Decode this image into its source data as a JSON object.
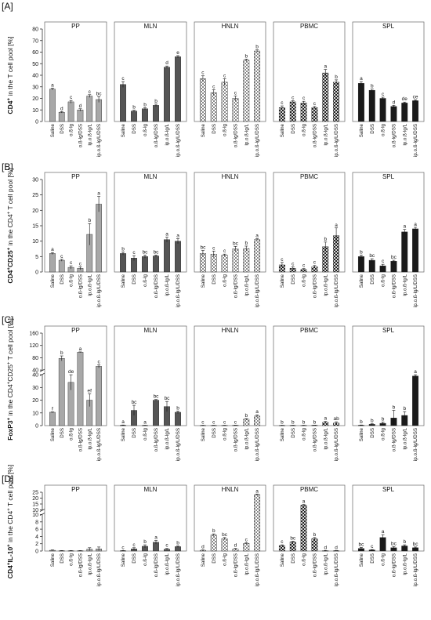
{
  "figure": {
    "groups": [
      "Saline",
      "DSS",
      "o.ß-lg",
      "o.ß-lg/DSS",
      "ip.o.ß-lg/L",
      "ip.o.ß-lg/L/DSS"
    ],
    "colors": {
      "PP": "#a8a8a8",
      "MLN": "#555555",
      "HNLN": "#c8c8c8",
      "PBMC": "#bbbbbb",
      "SPL": "#1a1a1a",
      "axis": "#333333",
      "text": "#111111"
    }
  },
  "chart_data": [
    {
      "type": "bar",
      "panel_tag": "[A]",
      "ylabel_main": "CD4",
      "ylabel_sup": "+",
      "ylabel_rest": " in the T cell pool [%]",
      "ylim": [
        0,
        80
      ],
      "yticks": [
        0,
        10,
        20,
        30,
        40,
        50,
        60,
        70,
        80
      ],
      "categories": [
        "Saline",
        "DSS",
        "o.ß-lg",
        "o.ß-lg/DSS",
        "ip.o.ß-lg/L",
        "ip.o.ß-lg/L/DSS"
      ],
      "tissues": [
        {
          "name": "PP",
          "pattern": "solid-light",
          "values": [
            28,
            8,
            17,
            10,
            22,
            19
          ],
          "errors": [
            0.8,
            0.6,
            1.2,
            1,
            1.2,
            2.5
          ],
          "letters": [
            "a",
            "d",
            "c",
            "d",
            "c",
            "bc"
          ]
        },
        {
          "name": "MLN",
          "pattern": "solid-dark",
          "values": [
            32,
            9,
            11,
            14,
            47,
            56
          ],
          "errors": [
            2.5,
            0.8,
            1,
            1,
            1,
            1
          ],
          "letters": [
            "c",
            "b",
            "b",
            "b",
            "d",
            "e"
          ]
        },
        {
          "name": "HNLN",
          "pattern": "check",
          "values": [
            37,
            25,
            34,
            20,
            53,
            61
          ],
          "errors": [
            2.5,
            2.5,
            3,
            2,
            1,
            1
          ],
          "letters": [
            "c",
            "c",
            "c",
            "c",
            "b",
            "b"
          ]
        },
        {
          "name": "PBMC",
          "pattern": "check-dark",
          "values": [
            12,
            17,
            16,
            12,
            42,
            34
          ],
          "errors": [
            1.5,
            1,
            1.5,
            1,
            3,
            2
          ],
          "letters": [
            "c",
            "c",
            "c",
            "c",
            "a",
            "b"
          ]
        },
        {
          "name": "SPL",
          "pattern": "solid-black",
          "values": [
            33,
            27,
            20,
            13,
            16,
            18
          ],
          "errors": [
            1.5,
            1,
            1,
            1,
            0.8,
            0.8
          ],
          "letters": [
            "a",
            "b",
            "c",
            "d",
            "de",
            "ce"
          ]
        }
      ]
    },
    {
      "type": "bar",
      "panel_tag": "[B]",
      "ylabel_main": "CD4",
      "ylabel_sup": "+",
      "ylabel_main2": "CD25",
      "ylabel_sup2": "+",
      "ylabel_rest": " in the CD4",
      "ylabel_sup3": "+",
      "ylabel_rest2": " T cell pool [%]",
      "ylim": [
        0,
        30
      ],
      "yticks": [
        0,
        5,
        10,
        15,
        20,
        25,
        30
      ],
      "categories": [
        "Saline",
        "DSS",
        "o.ß-lg",
        "o.ß-lg/DSS",
        "ip.o.ß-lg/L",
        "ip.o.ß-lg/L/DSS"
      ],
      "tissues": [
        {
          "name": "PP",
          "pattern": "solid-light",
          "values": [
            6,
            3.8,
            1.5,
            1.2,
            12.2,
            22
          ],
          "errors": [
            0.3,
            0.3,
            0.5,
            0.5,
            3.5,
            2.5
          ],
          "letters": [
            "a",
            "c",
            "c",
            "c",
            "b",
            "a"
          ]
        },
        {
          "name": "MLN",
          "pattern": "solid-dark",
          "values": [
            6,
            4.5,
            5,
            5.2,
            10.5,
            10
          ],
          "errors": [
            0.5,
            0.8,
            0.5,
            0.3,
            0.8,
            0.8
          ],
          "letters": [
            "b",
            "c",
            "bc",
            "bc",
            "a",
            "a"
          ]
        },
        {
          "name": "HNLN",
          "pattern": "check",
          "values": [
            6,
            5.8,
            5.5,
            7.5,
            7.6,
            10.5
          ],
          "errors": [
            1,
            1,
            0.3,
            0.8,
            0.8,
            0.3
          ],
          "letters": [
            "bc",
            "c",
            "c",
            "bc",
            "b",
            "a"
          ]
        },
        {
          "name": "PBMC",
          "pattern": "check-dark",
          "values": [
            2.3,
            1.2,
            0.8,
            1.7,
            8.2,
            11.8
          ],
          "errors": [
            0.8,
            0.5,
            0.3,
            0.4,
            1.5,
            2.5
          ],
          "letters": [
            "c",
            "c",
            "c",
            "c",
            "b",
            "a"
          ]
        },
        {
          "name": "SPL",
          "pattern": "solid-black",
          "values": [
            5,
            3.8,
            2,
            3.5,
            13,
            14
          ],
          "errors": [
            0.5,
            0.5,
            0.5,
            0.3,
            0.8,
            0.5
          ],
          "letters": [
            "b",
            "bc",
            "c",
            "bc",
            "a",
            "a"
          ]
        }
      ]
    },
    {
      "type": "bar",
      "panel_tag": "[C]",
      "ylabel_main": "FoxP3",
      "ylabel_sup": "+",
      "ylabel_rest": " in the CD4",
      "ylabel_sup2": "+",
      "ylabel_main2": "CD25",
      "ylabel_sup3": "+",
      "ylabel_rest2": " T cell pool [%]",
      "broken_axis": {
        "lower": [
          0,
          40
        ],
        "upper": [
          40,
          160
        ]
      },
      "yticks_lower": [
        0,
        10,
        20,
        30,
        40
      ],
      "yticks_upper": [
        40,
        80,
        120,
        160
      ],
      "categories": [
        "Saline",
        "DSS",
        "o.ß-lg",
        "o.ß-lg/DSS",
        "ip.o.ß-lg/L",
        "ip.o.ß-lg/L/DSS"
      ],
      "tissues": [
        {
          "name": "PP",
          "pattern": "solid-light",
          "values": [
            10.5,
            78,
            34,
            98,
            20,
            52
          ],
          "errors": [
            0.3,
            8,
            6,
            1,
            5,
            5
          ],
          "letters": [
            "f",
            "b",
            "de",
            "a",
            "ef",
            "c"
          ]
        },
        {
          "name": "MLN",
          "pattern": "solid-dark",
          "values": [
            0.3,
            12,
            0.2,
            20,
            15,
            10.5
          ],
          "errors": [
            0.2,
            4,
            0.1,
            0.5,
            4,
            1
          ],
          "letters": [
            "a",
            "bc",
            "a",
            "bc",
            "bc",
            "b"
          ]
        },
        {
          "name": "HNLN",
          "pattern": "check",
          "values": [
            0.2,
            0.2,
            0.2,
            0.3,
            5,
            7.5
          ],
          "errors": [
            0.1,
            0.1,
            0.1,
            0.1,
            0.5,
            1
          ],
          "letters": [
            "c",
            "c",
            "c",
            "c",
            "b",
            "a"
          ]
        },
        {
          "name": "PBMC",
          "pattern": "check-dark",
          "values": [
            0.2,
            0.2,
            0.2,
            0.3,
            2.5,
            2
          ],
          "errors": [
            0.1,
            0.1,
            0.1,
            0.1,
            0.8,
            1
          ],
          "letters": [
            "b",
            "b",
            "b",
            "b",
            "a",
            "ab"
          ]
        },
        {
          "name": "SPL",
          "pattern": "solid-black",
          "values": [
            0.3,
            1,
            1.8,
            6,
            8,
            39
          ],
          "errors": [
            0.2,
            0.5,
            1,
            6,
            3,
            1
          ],
          "letters": [
            "b",
            "b",
            "b",
            "b",
            "b",
            "a"
          ]
        }
      ]
    },
    {
      "type": "bar",
      "panel_tag": "[D]",
      "ylabel_main": "CD4",
      "ylabel_sup": "+",
      "ylabel_main2": "IL-10",
      "ylabel_sup2": "+",
      "ylabel_rest": " in the CD4",
      "ylabel_sup3": "+",
      "ylabel_rest2": " T cell pool [%]",
      "broken_axis": {
        "lower": [
          0,
          10
        ],
        "upper": [
          10,
          25
        ]
      },
      "yticks_lower": [
        0,
        2,
        4,
        6,
        8,
        10
      ],
      "yticks_upper": [
        10,
        15,
        20,
        25
      ],
      "categories": [
        "Saline",
        "DSS",
        "o.ß-lg",
        "o.ß-lg/DSS",
        "ip.o.ß-lg/L",
        "ip.o.ß-lg/L/DSS"
      ],
      "tissues": [
        {
          "name": "PP",
          "pattern": "solid-light",
          "values": [
            0.2,
            0.1,
            0.1,
            0.1,
            0.5,
            0.6
          ],
          "errors": [
            0.1,
            0.05,
            0.05,
            0.05,
            0.4,
            0.5
          ],
          "letters": [
            "",
            "",
            "",
            "",
            "",
            ""
          ]
        },
        {
          "name": "MLN",
          "pattern": "solid-dark",
          "values": [
            0.1,
            0.6,
            1.3,
            2.4,
            0.5,
            1.2
          ],
          "errors": [
            0.05,
            0.3,
            0.4,
            0.5,
            0.2,
            0.2
          ],
          "letters": [
            "c",
            "c",
            "b",
            "a",
            "c",
            "b"
          ]
        },
        {
          "name": "HNLN",
          "pattern": "check",
          "values": [
            0.2,
            4.4,
            3.4,
            0.5,
            2.1,
            23
          ],
          "errors": [
            0.1,
            0.3,
            0.3,
            0.2,
            0.2,
            0.5
          ],
          "letters": [
            "d",
            "b",
            "bc",
            "d",
            "c",
            "a"
          ]
        },
        {
          "name": "PBMC",
          "pattern": "check-dark",
          "values": [
            1.5,
            2.5,
            14,
            3.4,
            0.1,
            0.1
          ],
          "errors": [
            0.2,
            0.2,
            0.6,
            0.3,
            0.05,
            0.05
          ],
          "letters": [
            "c",
            "bc",
            "a",
            "b",
            "d",
            "d"
          ]
        },
        {
          "name": "SPL",
          "pattern": "solid-black",
          "values": [
            0.7,
            0.3,
            3.7,
            0.9,
            1.4,
            0.9
          ],
          "errors": [
            0.3,
            0.1,
            0.8,
            0.3,
            0.3,
            0.2
          ],
          "letters": [
            "bc",
            "c",
            "a",
            "bc",
            "b",
            "bc"
          ]
        }
      ]
    }
  ]
}
